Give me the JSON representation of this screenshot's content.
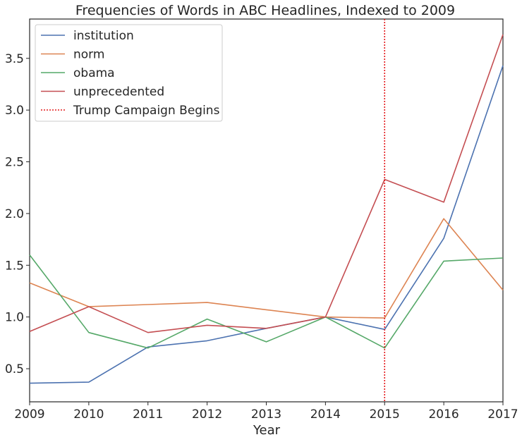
{
  "chart_data": {
    "type": "line",
    "title": "Frequencies of Words in ABC Headlines, Indexed to 2009",
    "xlabel": "Year",
    "ylabel": "",
    "x": [
      2009,
      2010,
      2011,
      2012,
      2013,
      2014,
      2015,
      2016,
      2017
    ],
    "xlim": [
      2009,
      2017
    ],
    "ylim": [
      0.18,
      3.88
    ],
    "yticks": [
      0.5,
      1.0,
      1.5,
      2.0,
      2.5,
      3.0,
      3.5
    ],
    "ytick_labels": [
      "0.5",
      "1.0",
      "1.5",
      "2.0",
      "2.5",
      "3.0",
      "3.5"
    ],
    "xtick_labels": [
      "2009",
      "2010",
      "2011",
      "2012",
      "2013",
      "2014",
      "2015",
      "2016",
      "2017"
    ],
    "grid": false,
    "legend_position": "top-left",
    "series": [
      {
        "name": "institution",
        "color": "#4c72b0",
        "values": [
          0.36,
          0.37,
          0.71,
          0.77,
          0.89,
          1.0,
          0.88,
          1.76,
          3.43
        ]
      },
      {
        "name": "norm",
        "color": "#dd8452",
        "values": [
          1.33,
          1.1,
          1.12,
          1.14,
          1.07,
          1.0,
          0.99,
          1.95,
          1.26
        ]
      },
      {
        "name": "obama",
        "color": "#55a868",
        "values": [
          1.6,
          0.85,
          0.7,
          0.98,
          0.76,
          1.0,
          0.7,
          1.54,
          1.57
        ]
      },
      {
        "name": "unprecedented",
        "color": "#c44e52",
        "values": [
          0.86,
          1.1,
          0.85,
          0.92,
          0.89,
          1.0,
          2.33,
          2.11,
          3.73
        ]
      }
    ],
    "annotations": [
      {
        "type": "vline",
        "x": 2015,
        "label": "Trump Campaign Begins",
        "color": "#e41a1c",
        "style": "dotted"
      }
    ]
  }
}
